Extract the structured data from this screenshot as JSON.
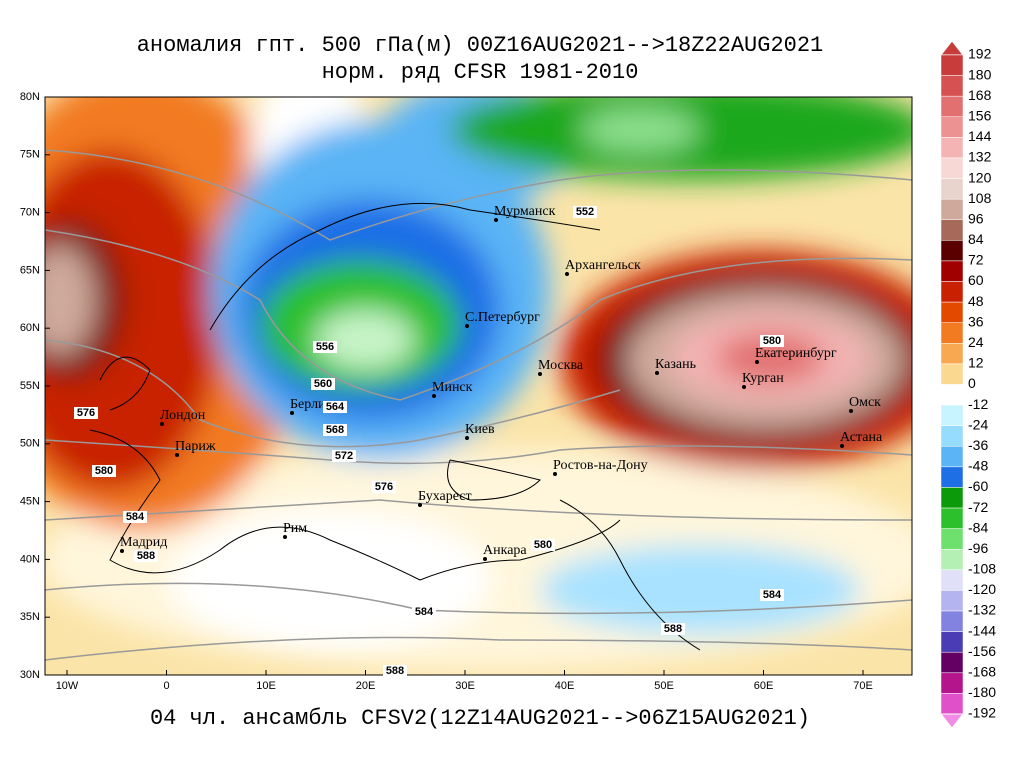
{
  "header": {
    "title": [
      "аномалия гпт. 500 гПа(м) 00Z16AUG2021-->18Z22AUG2021",
      "норм. ряд CFSR 1981-2010"
    ],
    "footer": "04 чл. ансамбль CFSV2(12Z14AUG2021-->06Z15AUG2021)"
  },
  "axes": {
    "lat_labels": [
      "80N",
      "75N",
      "70N",
      "65N",
      "60N",
      "55N",
      "50N",
      "45N",
      "40N",
      "35N",
      "30N"
    ],
    "lon_labels": [
      "10W",
      "0",
      "10E",
      "20E",
      "30E",
      "40E",
      "50E",
      "60E",
      "70E"
    ]
  },
  "cities": [
    "Мурманск",
    "Архангельск",
    "С.Петербург",
    "Москва",
    "Казань",
    "Екатеринбург",
    "Курган",
    "Омск",
    "Астана",
    "Минск",
    "Киев",
    "Ростов-на-Дону",
    "Бухарест",
    "Анкара",
    "Рим",
    "Мадрид",
    "Париж",
    "Лондон",
    "Берлин"
  ],
  "contour_labels": [
    "552",
    "556",
    "560",
    "564",
    "568",
    "572",
    "576",
    "576",
    "580",
    "580",
    "580",
    "584",
    "584",
    "584",
    "588",
    "588",
    "588"
  ],
  "colorbar": {
    "labels": [
      "192",
      "180",
      "168",
      "156",
      "144",
      "132",
      "120",
      "108",
      "96",
      "84",
      "72",
      "60",
      "48",
      "36",
      "24",
      "12",
      "0",
      "-12",
      "-24",
      "-36",
      "-48",
      "-60",
      "-72",
      "-84",
      "-96",
      "-108",
      "-120",
      "-132",
      "-144",
      "-156",
      "-168",
      "-180",
      "-192"
    ],
    "colors": [
      "#c83c3c",
      "#d65252",
      "#e27070",
      "#ec9292",
      "#f4b4b4",
      "#f8d8d4",
      "#e8d4cc",
      "#cfaa9c",
      "#a66a5a",
      "#5a0000",
      "#a00000",
      "#c82000",
      "#e24a00",
      "#f27a20",
      "#f8a850",
      "#fbd890",
      "#ffffff",
      "#c8f4ff",
      "#96dcff",
      "#5ab4f5",
      "#1e6ee6",
      "#0a9a0a",
      "#2cc02c",
      "#6ee06e",
      "#b4f0b4",
      "#e0e0f8",
      "#b4b4f0",
      "#8282e0",
      "#4a3cb4",
      "#640064",
      "#b4148c",
      "#e050c8",
      "#f08ce6"
    ]
  }
}
